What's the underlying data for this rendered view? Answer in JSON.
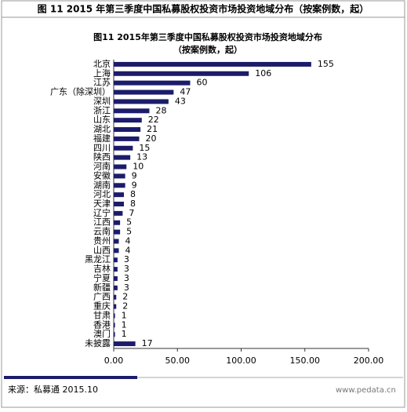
{
  "header": "图 11 2015 年第三季度中国私募股权投资市场投资地域分布（按案例数，起）",
  "chart_data": {
    "type": "hbar",
    "title": "图11 2015年第三季度中国私募股权投资市场投资地域分布",
    "subtitle": "（按案例数，起）",
    "categories": [
      "北京",
      "上海",
      "江苏",
      "广东（除深圳）",
      "深圳",
      "浙江",
      "山东",
      "湖北",
      "福建",
      "四川",
      "陕西",
      "河南",
      "安徽",
      "湖南",
      "河北",
      "天津",
      "辽宁",
      "江西",
      "云南",
      "贵州",
      "山西",
      "黑龙江",
      "吉林",
      "宁夏",
      "新疆",
      "广西",
      "重庆",
      "甘肃",
      "香港",
      "澳门",
      "未披露"
    ],
    "values": [
      155,
      106,
      60,
      47,
      43,
      28,
      22,
      21,
      20,
      15,
      13,
      10,
      9,
      9,
      8,
      8,
      7,
      5,
      5,
      4,
      4,
      3,
      3,
      3,
      3,
      2,
      2,
      1,
      1,
      1,
      17
    ],
    "color": "#1c1c6b",
    "xlim": [
      0,
      200
    ],
    "xticks": [
      {
        "value": 0,
        "label": "0.00"
      },
      {
        "value": 50,
        "label": "50.00"
      },
      {
        "value": 100,
        "label": "100.00"
      },
      {
        "value": 150,
        "label": "150.00"
      },
      {
        "value": 200,
        "label": "200.00"
      }
    ]
  },
  "footer": {
    "source": "来源：私募通  2015.10",
    "watermark": "www.pedata.cn"
  }
}
